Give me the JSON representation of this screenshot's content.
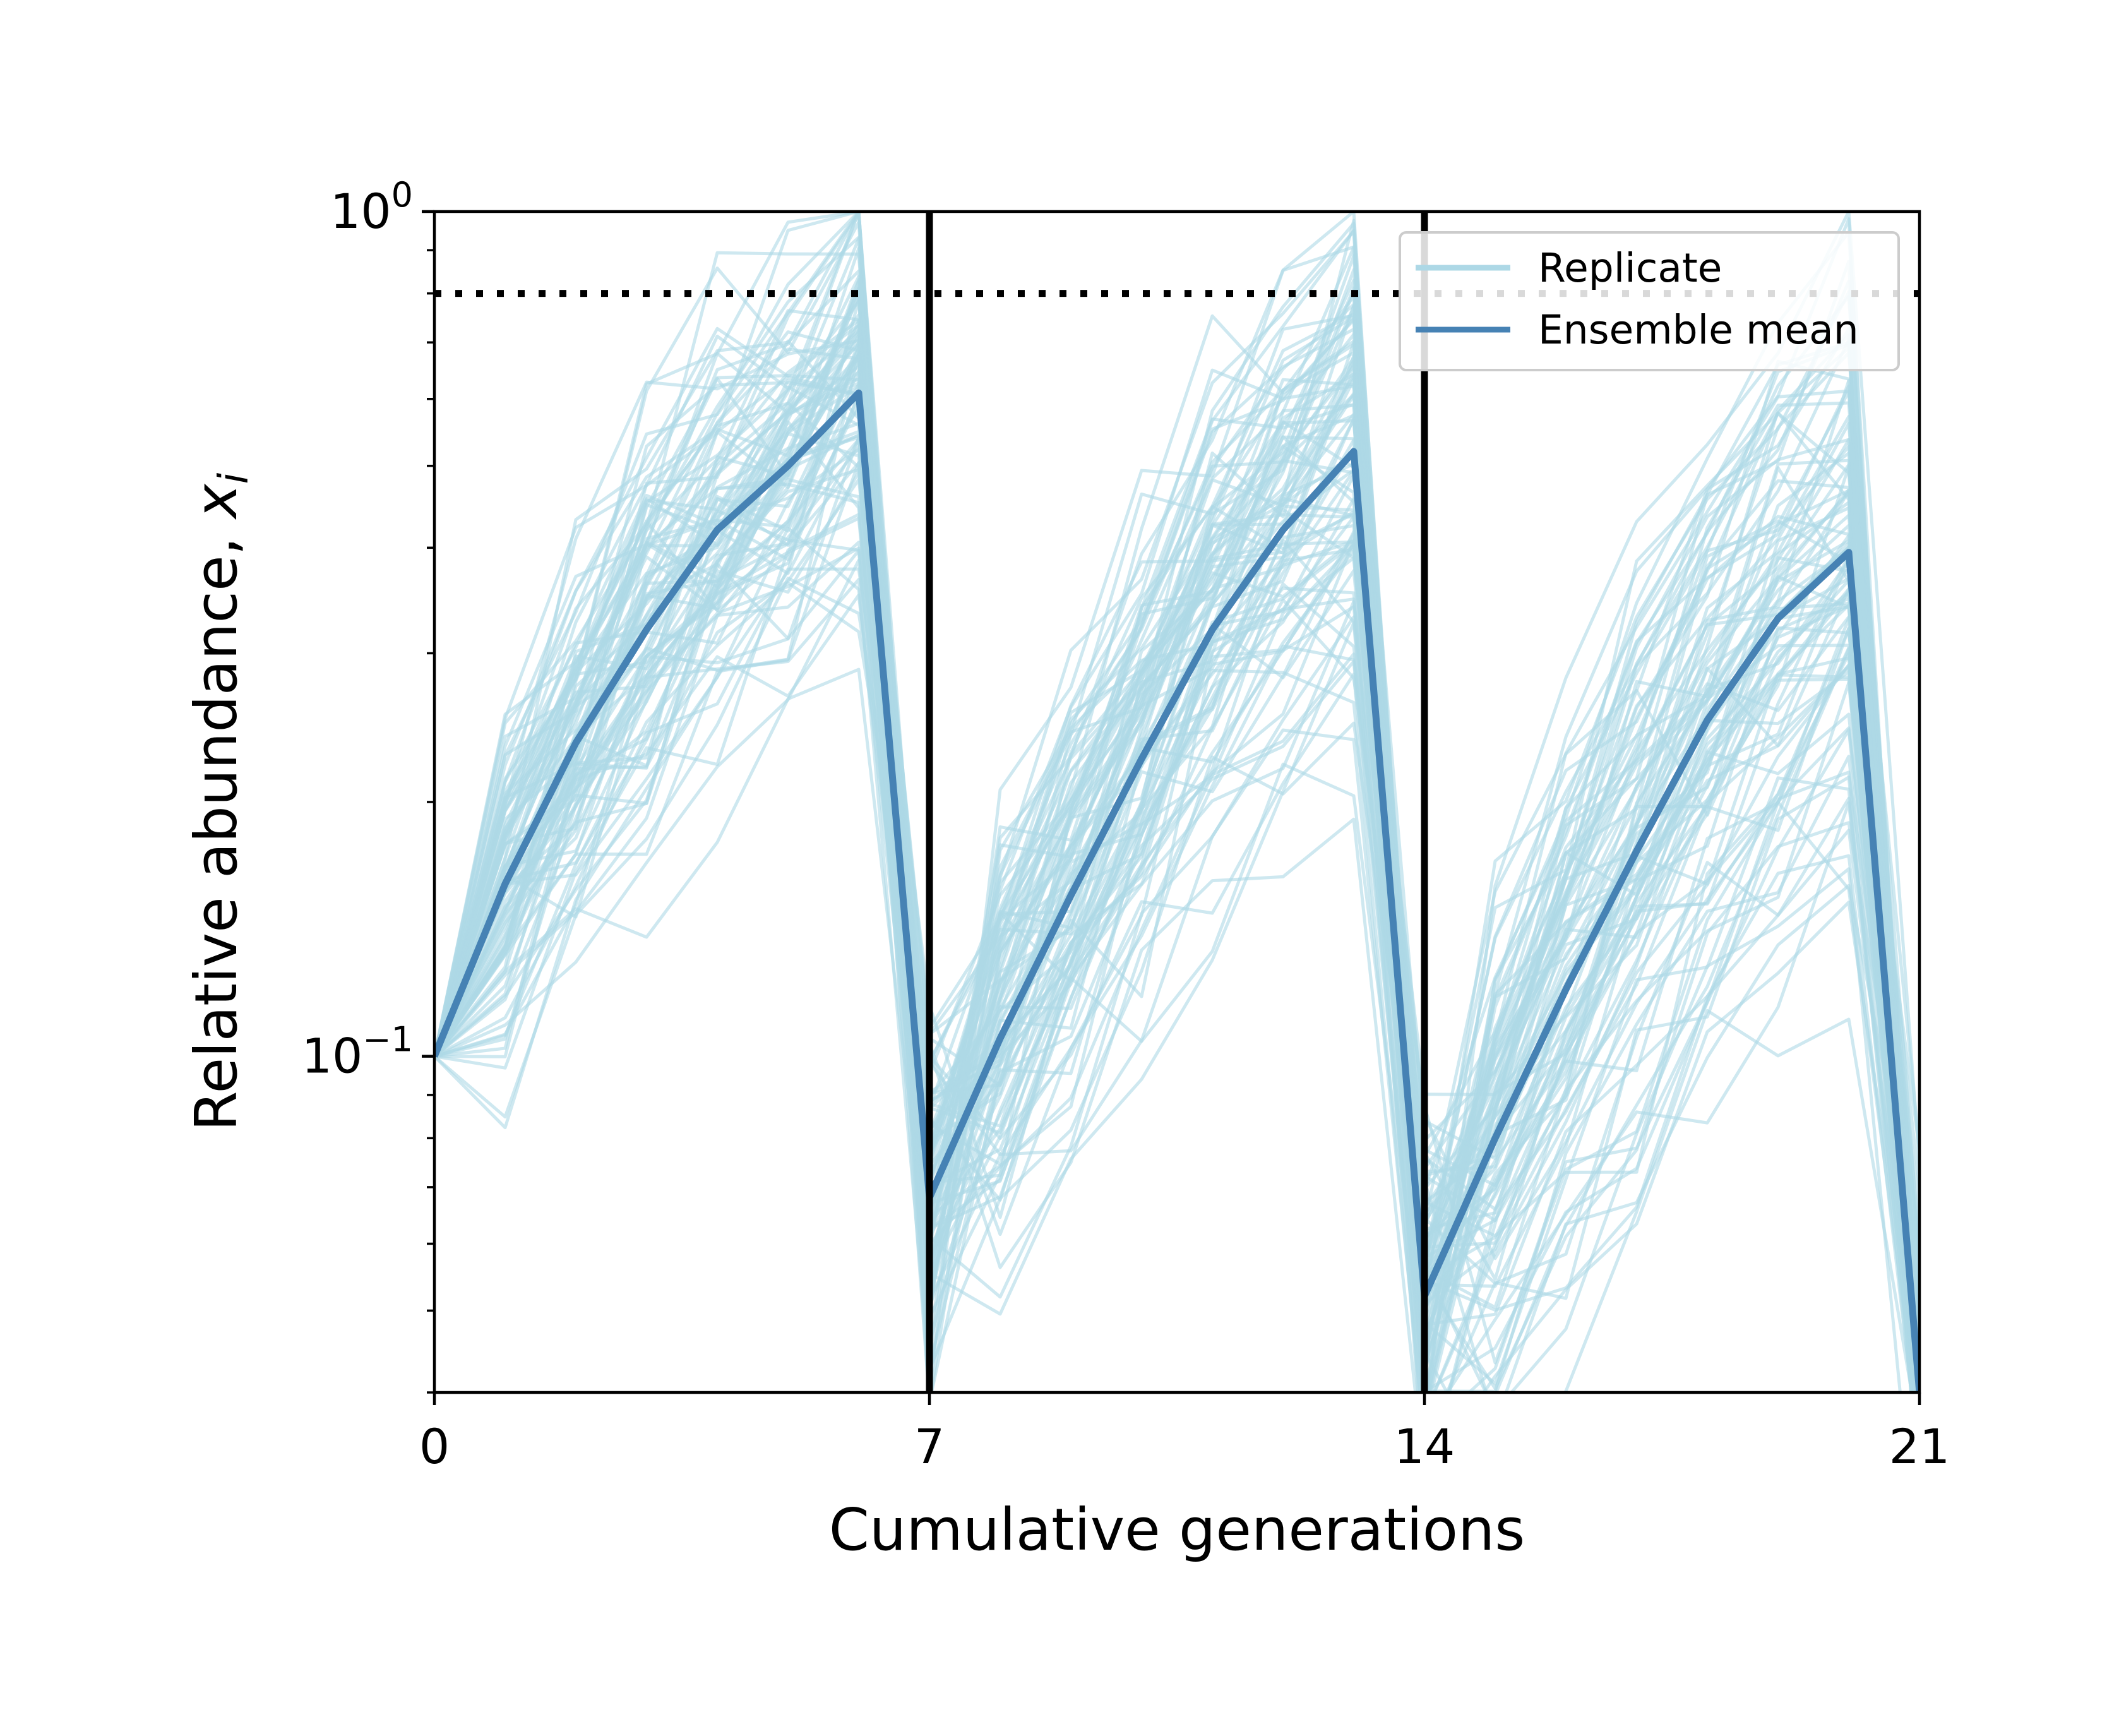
{
  "chart_data": {
    "type": "line",
    "xlabel": "Cumulative generations",
    "ylabel": "Relative abundance, ",
    "ylabel_math": "x",
    "ylabel_sub": "i",
    "y_scale": "log",
    "xlim": [
      0,
      21
    ],
    "ylim": [
      0.04,
      1.0
    ],
    "x_ticks": [
      0,
      7,
      14,
      21
    ],
    "x_tick_labels": [
      "0",
      "7",
      "14",
      "21"
    ],
    "y_major_ticks": [
      {
        "value": 1.0,
        "base": "10",
        "exp": "0"
      },
      {
        "value": 0.1,
        "base": "10",
        "exp": "−1"
      }
    ],
    "y_minor_ticks": [
      0.04,
      0.05,
      0.06,
      0.07,
      0.08,
      0.09,
      0.2,
      0.3,
      0.4,
      0.5,
      0.6,
      0.7,
      0.8,
      0.9
    ],
    "grid": false,
    "transfer_lines_x": [
      7,
      14
    ],
    "threshold": {
      "y": 0.8,
      "style": "dotted",
      "color": "#000000"
    },
    "legend": {
      "position": "top-right",
      "entries": [
        {
          "label": "Replicate",
          "color": "#add8e6"
        },
        {
          "label": "Ensemble mean",
          "color": "#4682b4"
        }
      ]
    },
    "series": [
      {
        "name": "Ensemble mean",
        "color": "#4682b4",
        "x": [
          0,
          1,
          2,
          3,
          4,
          5,
          6,
          7,
          8,
          9,
          10,
          11,
          12,
          13,
          14,
          15,
          16,
          17,
          18,
          19,
          20,
          21
        ],
        "y": [
          0.1,
          0.16,
          0.235,
          0.32,
          0.42,
          0.5,
          0.61,
          0.068,
          0.105,
          0.155,
          0.225,
          0.32,
          0.42,
          0.52,
          0.052,
          0.08,
          0.12,
          0.175,
          0.25,
          0.33,
          0.395,
          0.04
        ]
      }
    ],
    "replicates": {
      "name": "Replicate",
      "color": "#add8e6",
      "count": 100,
      "x": [
        0,
        1,
        2,
        3,
        4,
        5,
        6,
        7,
        8,
        9,
        10,
        11,
        12,
        13,
        14,
        15,
        16,
        17,
        18,
        19,
        20,
        21
      ],
      "description_of_spread": "individual stochastic trajectories, same transfer pattern as the mean, spread roughly 0.5x to 2x around the ensemble mean, clipped at 1.0"
    }
  }
}
